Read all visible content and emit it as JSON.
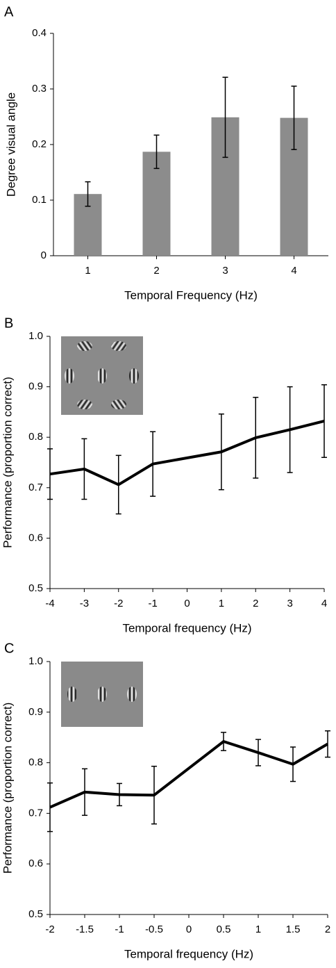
{
  "chart_data": [
    {
      "type": "bar",
      "label": "A",
      "xlabel": "Temporal Frequency (Hz)",
      "ylabel": "Degree visual angle",
      "categories": [
        "1",
        "2",
        "3",
        "4"
      ],
      "values": [
        0.111,
        0.187,
        0.249,
        0.248
      ],
      "errors": [
        0.022,
        0.03,
        0.072,
        0.057
      ],
      "color": "#8c8c8c",
      "ylim": [
        0,
        0.4
      ],
      "yticks": [
        0,
        0.1,
        0.2,
        0.3,
        0.4
      ]
    },
    {
      "type": "line",
      "label": "B",
      "xlabel": "Temporal frequency (Hz)",
      "ylabel": "Performance (proportion correct)",
      "x": [
        -4,
        -3,
        -2,
        -1,
        1,
        2,
        3,
        4
      ],
      "values": [
        0.727,
        0.737,
        0.706,
        0.747,
        0.771,
        0.799,
        0.815,
        0.832
      ],
      "errors": [
        0.05,
        0.06,
        0.058,
        0.064,
        0.075,
        0.08,
        0.085,
        0.072
      ],
      "color": "#000000",
      "xlim": [
        -4,
        4
      ],
      "xticks": [
        -4,
        -3,
        -2,
        -1,
        0,
        1,
        2,
        3,
        4
      ],
      "ylim": [
        0.5,
        1.0
      ],
      "yticks": [
        0.5,
        0.6,
        0.7,
        0.8,
        0.9,
        {
          "value": 1,
          "label": "1.0"
        }
      ]
    },
    {
      "type": "line",
      "label": "C",
      "xlabel": "Temporal frequency (Hz)",
      "ylabel": "Performance (proportion correct)",
      "x": [
        -2,
        -1.5,
        -1,
        -0.5,
        0.5,
        1,
        1.5,
        2
      ],
      "values": [
        0.712,
        0.742,
        0.737,
        0.736,
        0.842,
        0.82,
        0.797,
        0.837
      ],
      "errors": [
        0.048,
        0.046,
        0.022,
        0.057,
        0.018,
        0.026,
        0.034,
        0.026
      ],
      "color": "#000000",
      "xlim": [
        -2,
        2
      ],
      "xticks": [
        -2,
        -1.5,
        -1,
        -0.5,
        0,
        0.5,
        1,
        1.5,
        2
      ],
      "ylim": [
        0.5,
        1.0
      ],
      "yticks": [
        0.5,
        0.6,
        0.7,
        0.8,
        0.9,
        {
          "value": 1,
          "label": "1.0"
        }
      ]
    }
  ]
}
